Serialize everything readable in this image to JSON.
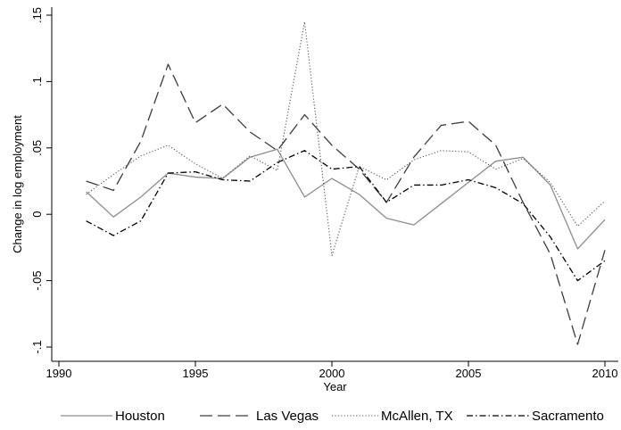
{
  "chart_data": {
    "type": "line",
    "xlabel": "Year",
    "ylabel": "Change in log employment",
    "xlim": [
      1990,
      2010
    ],
    "ylim": [
      -0.1,
      0.15
    ],
    "xticks": [
      {
        "value": 1990,
        "label": "1990"
      },
      {
        "value": 1995,
        "label": "1995"
      },
      {
        "value": 2000,
        "label": "2000"
      },
      {
        "value": 2005,
        "label": "2005"
      },
      {
        "value": 2010,
        "label": "2010"
      }
    ],
    "yticks": [
      {
        "value": -0.1,
        "label": "-.1"
      },
      {
        "value": -0.05,
        "label": "-.05"
      },
      {
        "value": 0,
        "label": "0"
      },
      {
        "value": 0.05,
        "label": ".05"
      },
      {
        "value": 0.1,
        "label": ".1"
      },
      {
        "value": 0.15,
        "label": ".15"
      }
    ],
    "grid": false,
    "legend_position": "bottom",
    "x": [
      1991,
      1992,
      1993,
      1994,
      1995,
      1996,
      1997,
      1998,
      1999,
      2000,
      2001,
      2002,
      2003,
      2004,
      2005,
      2006,
      2007,
      2008,
      2009,
      2010
    ],
    "series": [
      {
        "name": "Houston",
        "color": "#8c8c8c",
        "dash": "solid",
        "values": [
          0.017,
          -0.002,
          0.013,
          0.031,
          0.028,
          0.027,
          0.043,
          0.049,
          0.013,
          0.027,
          0.015,
          -0.003,
          -0.008,
          0.008,
          0.024,
          0.04,
          0.043,
          0.022,
          -0.026,
          -0.004
        ]
      },
      {
        "name": "Las Vegas",
        "color": "#3c3c3c",
        "dash": "long-dash",
        "values": [
          0.025,
          0.018,
          0.055,
          0.113,
          0.069,
          0.083,
          0.062,
          0.048,
          0.075,
          0.052,
          0.034,
          0.009,
          0.043,
          0.067,
          0.07,
          0.052,
          0.009,
          -0.03,
          -0.098,
          -0.027
        ]
      },
      {
        "name": "McAllen, TX",
        "color": "#555555",
        "dash": "dotted",
        "values": [
          0.015,
          0.03,
          0.044,
          0.052,
          0.038,
          0.027,
          0.044,
          0.033,
          0.145,
          -0.031,
          0.036,
          0.026,
          0.041,
          0.048,
          0.047,
          0.034,
          0.042,
          0.024,
          -0.009,
          0.01
        ]
      },
      {
        "name": "Sacramento",
        "color": "#000000",
        "dash": "dash-dot",
        "values": [
          -0.005,
          -0.016,
          -0.005,
          0.031,
          0.032,
          0.026,
          0.025,
          0.039,
          0.048,
          0.034,
          0.036,
          0.009,
          0.022,
          0.022,
          0.026,
          0.02,
          0.008,
          -0.017,
          -0.05,
          -0.035
        ]
      }
    ]
  }
}
